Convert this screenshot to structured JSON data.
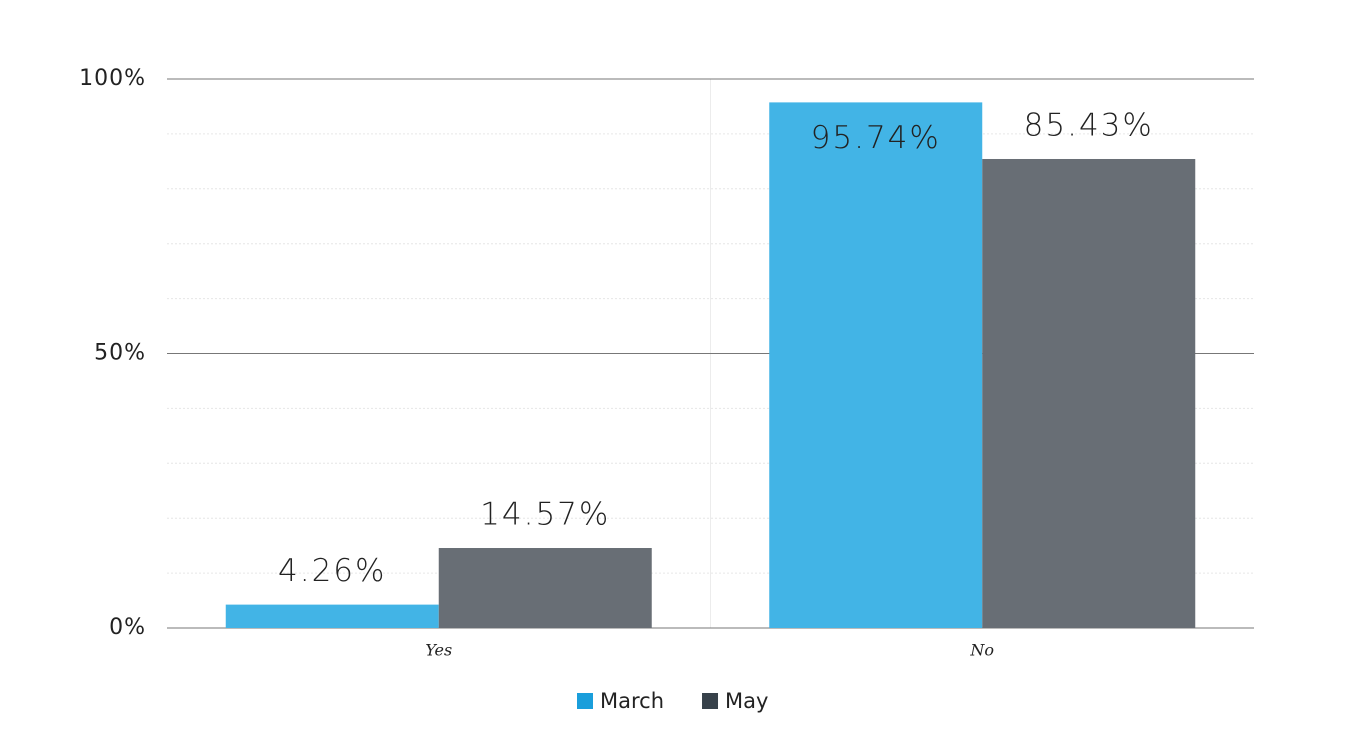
{
  "chart_data": {
    "type": "bar",
    "categories": [
      "Yes",
      "No"
    ],
    "series": [
      {
        "name": "March",
        "color": "#42b4e6",
        "legend_color": "#1a9edb",
        "values": [
          4.26,
          95.74
        ],
        "value_labels": [
          "4.26%",
          "95.74%"
        ]
      },
      {
        "name": "May",
        "color": "#686e75",
        "legend_color": "#37414a",
        "values": [
          14.57,
          85.43
        ],
        "value_labels": [
          "14.57%",
          "85.43%"
        ]
      }
    ],
    "ylim": [
      0,
      100
    ],
    "yticks": [
      {
        "value": 0,
        "label": "0%"
      },
      {
        "value": 50,
        "label": "50%"
      },
      {
        "value": 100,
        "label": "100%"
      }
    ],
    "minor_yticks": [
      10,
      20,
      30,
      40,
      60,
      70,
      80,
      90
    ],
    "grid": true
  }
}
